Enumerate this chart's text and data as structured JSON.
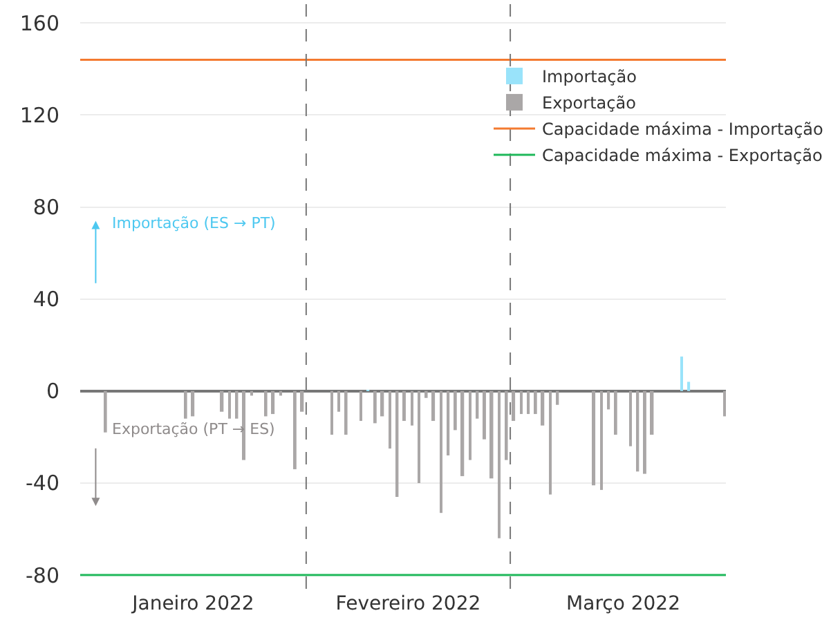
{
  "chart_data": {
    "type": "bar",
    "ylim": [
      -86,
      170
    ],
    "yticks": [
      -80,
      -40,
      0,
      40,
      80,
      120,
      160
    ],
    "xlim": [
      "2022-01-01",
      "2022-03-30T14:00"
    ],
    "xticks": [
      {
        "value": "2022-01-16T12:00",
        "label": "Janeiro 2022"
      },
      {
        "value": "2022-02-15",
        "label": "Fevereiro 2022"
      },
      {
        "value": "2022-03-16T12:00",
        "label": "Março 2022"
      }
    ],
    "grid": "y",
    "legend": "top right",
    "series": [
      {
        "name": "Importação",
        "color": "#99e3fa",
        "x": [
          "2022-02-09",
          "2022-03-24",
          "2022-03-25"
        ],
        "values": [
          0.5,
          15,
          4
        ]
      },
      {
        "name": "Exportação",
        "color": "#aaa7a7",
        "x": [
          "2022-01-04",
          "2022-01-15",
          "2022-01-16",
          "2022-01-20",
          "2022-01-21",
          "2022-01-22",
          "2022-01-23",
          "2022-01-24",
          "2022-01-26",
          "2022-01-27",
          "2022-01-28",
          "2022-01-30",
          "2022-01-31",
          "2022-02-04",
          "2022-02-05",
          "2022-02-06",
          "2022-02-08",
          "2022-02-10",
          "2022-02-11",
          "2022-02-12",
          "2022-02-13",
          "2022-02-14",
          "2022-02-15",
          "2022-02-16",
          "2022-02-17",
          "2022-02-18",
          "2022-02-19",
          "2022-02-20",
          "2022-02-21",
          "2022-02-22",
          "2022-02-23",
          "2022-02-24",
          "2022-02-25",
          "2022-02-26",
          "2022-02-27",
          "2022-02-28",
          "2022-03-01",
          "2022-03-02",
          "2022-03-03",
          "2022-03-04",
          "2022-03-05",
          "2022-03-06",
          "2022-03-07",
          "2022-03-12",
          "2022-03-13",
          "2022-03-14",
          "2022-03-15",
          "2022-03-17",
          "2022-03-18",
          "2022-03-19",
          "2022-03-20",
          "2022-03-30"
        ],
        "values": [
          -18,
          -12,
          -11,
          -9,
          -12,
          -12,
          -30,
          -2,
          -11,
          -10,
          -2,
          -34,
          -9,
          -19,
          -9,
          -19,
          -13,
          -14,
          -11,
          -25,
          -46,
          -13,
          -15,
          -40,
          -3,
          -13,
          -53,
          -28,
          -17,
          -37,
          -30,
          -12,
          -21,
          -38,
          -64,
          -30,
          -13,
          -10,
          -10,
          -10,
          -15,
          -45,
          -6,
          -41,
          -43,
          -8,
          -19,
          -24,
          -35,
          -36,
          -19,
          -11
        ]
      },
      {
        "name": "Capacidade máxima - Importação",
        "type": "line",
        "color": "#f47a30",
        "x": [
          "2022-01-01",
          "2022-03-30T14:00"
        ],
        "values": [
          144,
          144
        ]
      },
      {
        "name": "Capacidade máxima - Exportação",
        "type": "line",
        "color": "#1fb85a",
        "x": [
          "2022-01-01",
          "2022-03-30T14:00"
        ],
        "values": [
          -80,
          -80
        ]
      }
    ],
    "ref_lines": [
      {
        "axis": "x",
        "value": "2022-02-01",
        "color": "#777777",
        "line_style": "dashed"
      },
      {
        "axis": "x",
        "value": "2022-03-01",
        "color": "#777777",
        "line_style": "dashed"
      }
    ],
    "annotations": [
      "Importação (ES → PT)",
      "Exportação (PT → ES)"
    ]
  }
}
